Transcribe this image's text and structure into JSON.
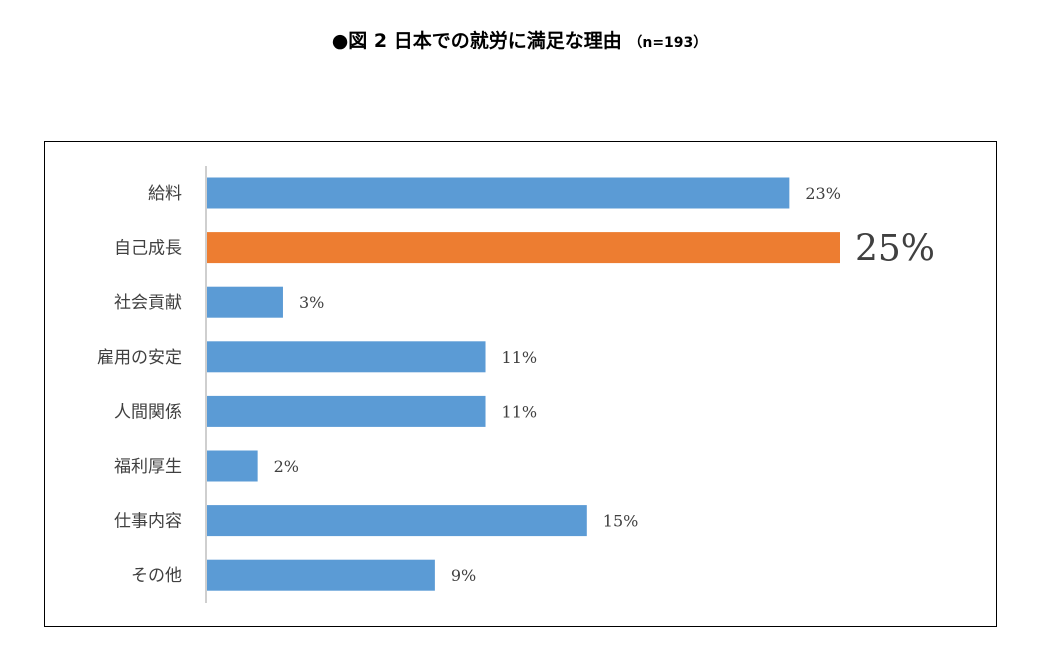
{
  "title": {
    "main": "●図 2 日本での就労に満足な理由",
    "sample": "（n=193）"
  },
  "chart_data": {
    "type": "bar",
    "orientation": "horizontal",
    "categories": [
      "給料",
      "自己成長",
      "社会貢献",
      "雇用の安定",
      "人間関係",
      "福利厚生",
      "仕事内容",
      "その他"
    ],
    "values": [
      23,
      25,
      3,
      11,
      11,
      2,
      15,
      9
    ],
    "value_labels": [
      "23%",
      "25%",
      "3%",
      "11%",
      "11%",
      "2%",
      "15%",
      "9%"
    ],
    "highlight_index": 1,
    "colors": {
      "default": "#5B9BD5",
      "highlight": "#ED7D31",
      "axis": "#BFBFBF",
      "label": "#404040"
    },
    "xlim": [
      0,
      25
    ],
    "grid": false,
    "legend": "none"
  }
}
